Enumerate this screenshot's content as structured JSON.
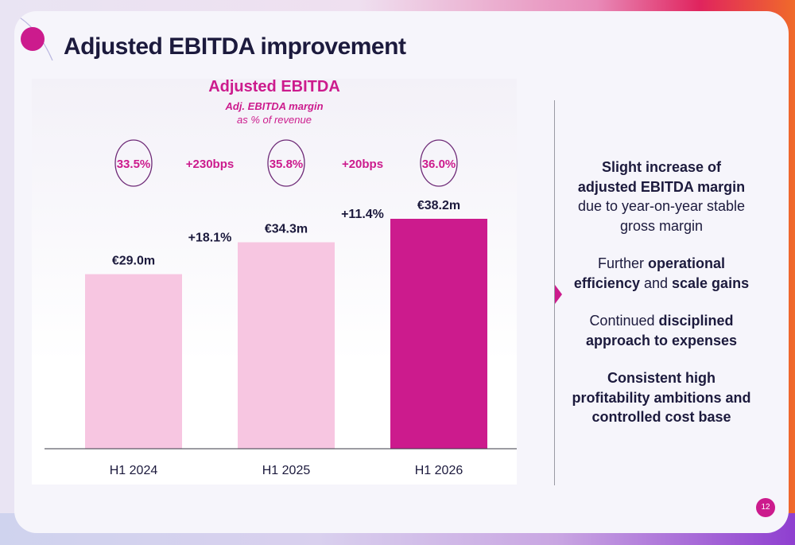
{
  "title": "Adjusted EBITDA improvement",
  "colors": {
    "accent": "#cc1b8d",
    "light_bar": "#f7c6e1",
    "dark_text": "#1c1a3d",
    "circle": "#6e2a77"
  },
  "icons": {
    "title_dot": "magenta-dot-icon",
    "arrow": "chevron-right-icon"
  },
  "chart_data": {
    "type": "bar",
    "title": "Adjusted EBITDA",
    "subtitle_bold": "Adj. EBITDA margin",
    "subtitle": "as % of revenue",
    "categories": [
      "H1 2024",
      "H1 2025",
      "H1 2026"
    ],
    "values": [
      29.0,
      34.3,
      38.2
    ],
    "value_labels": [
      "€29.0m",
      "€34.3m",
      "€38.2m"
    ],
    "bar_colors": [
      "#f7c6e1",
      "#f7c6e1",
      "#cc1b8d"
    ],
    "growth_labels": [
      "+18.1%",
      "+11.4%"
    ],
    "margins": [
      "33.5%",
      "35.8%",
      "36.0%"
    ],
    "margin_changes": [
      "+230bps",
      "+20bps"
    ],
    "ylim": [
      0,
      38.2
    ],
    "grid": false
  },
  "bullets": [
    {
      "parts": [
        {
          "text": "Slight increase of adjusted EBITDA margin",
          "bold": true
        },
        {
          "text": " due to year-on-year stable gross margin",
          "bold": false
        }
      ]
    },
    {
      "parts": [
        {
          "text": "Further ",
          "bold": false
        },
        {
          "text": "operational efficiency",
          "bold": true
        },
        {
          "text": " and ",
          "bold": false
        },
        {
          "text": "scale gains",
          "bold": true
        }
      ]
    },
    {
      "parts": [
        {
          "text": "Continued ",
          "bold": false
        },
        {
          "text": "disciplined approach to expenses",
          "bold": true
        }
      ]
    },
    {
      "parts": [
        {
          "text": "Consistent high profitability ambitions and controlled cost base",
          "bold": true
        }
      ]
    }
  ],
  "page_number": "12"
}
